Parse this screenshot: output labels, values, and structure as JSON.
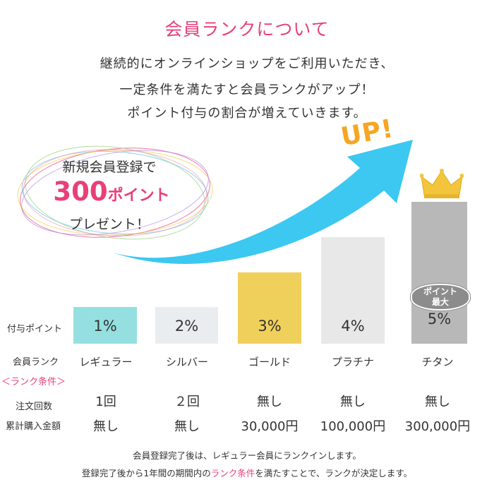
{
  "title": "会員ランクについて",
  "intro": {
    "line1": "継続的にオンラインショップをご利用いただき、",
    "line2": "一定条件を満たすと会員ランクがアップ！",
    "line3": "ポイント付与の割合が増えていきます。"
  },
  "up_text": "UP!",
  "promo": {
    "line1": "新規会員登録で",
    "points_number": "300",
    "points_unit": "ポイント",
    "line3": "プレゼント！"
  },
  "row_labels": {
    "point_rate": "付与ポイント",
    "rank": "会員ランク",
    "conditions_header": "＜ランク条件＞",
    "order_count": "注文回数",
    "total_amount": "累計購入金額"
  },
  "badge": {
    "line1": "ポイント",
    "line2": "最大"
  },
  "ranks": [
    {
      "name": "レギュラー",
      "rate": "1%",
      "orders": "1回",
      "amount": "無し",
      "color": "#95dfe0",
      "level": 1
    },
    {
      "name": "シルバー",
      "rate": "2%",
      "orders": "２回",
      "amount": "無し",
      "color": "#eaedf0",
      "level": 2
    },
    {
      "name": "ゴールド",
      "rate": "3%",
      "orders": "無し",
      "amount": "30,000円",
      "color": "#efd05b",
      "level": 3
    },
    {
      "name": "プラチナ",
      "rate": "4%",
      "orders": "無し",
      "amount": "100,000円",
      "color": "#e8e8e8",
      "level": 4
    },
    {
      "name": "チタン",
      "rate": "5%",
      "orders": "無し",
      "amount": "300,000円",
      "color": "#b8b8b8",
      "level": 5
    }
  ],
  "footer": {
    "line1": "会員登録完了後は、レギュラー会員にランクインします。",
    "line2_prefix": "登録完了後から1年間の期間内の",
    "line2_highlight": "ランク条件",
    "line2_suffix": "を満たすことで、ランクが決定します。"
  },
  "colors": {
    "accent_pink": "#e8407a",
    "arrow_blue": "#3cc8f0",
    "up_orange": "#f6a623",
    "crown_gold": "#f2c53d"
  }
}
